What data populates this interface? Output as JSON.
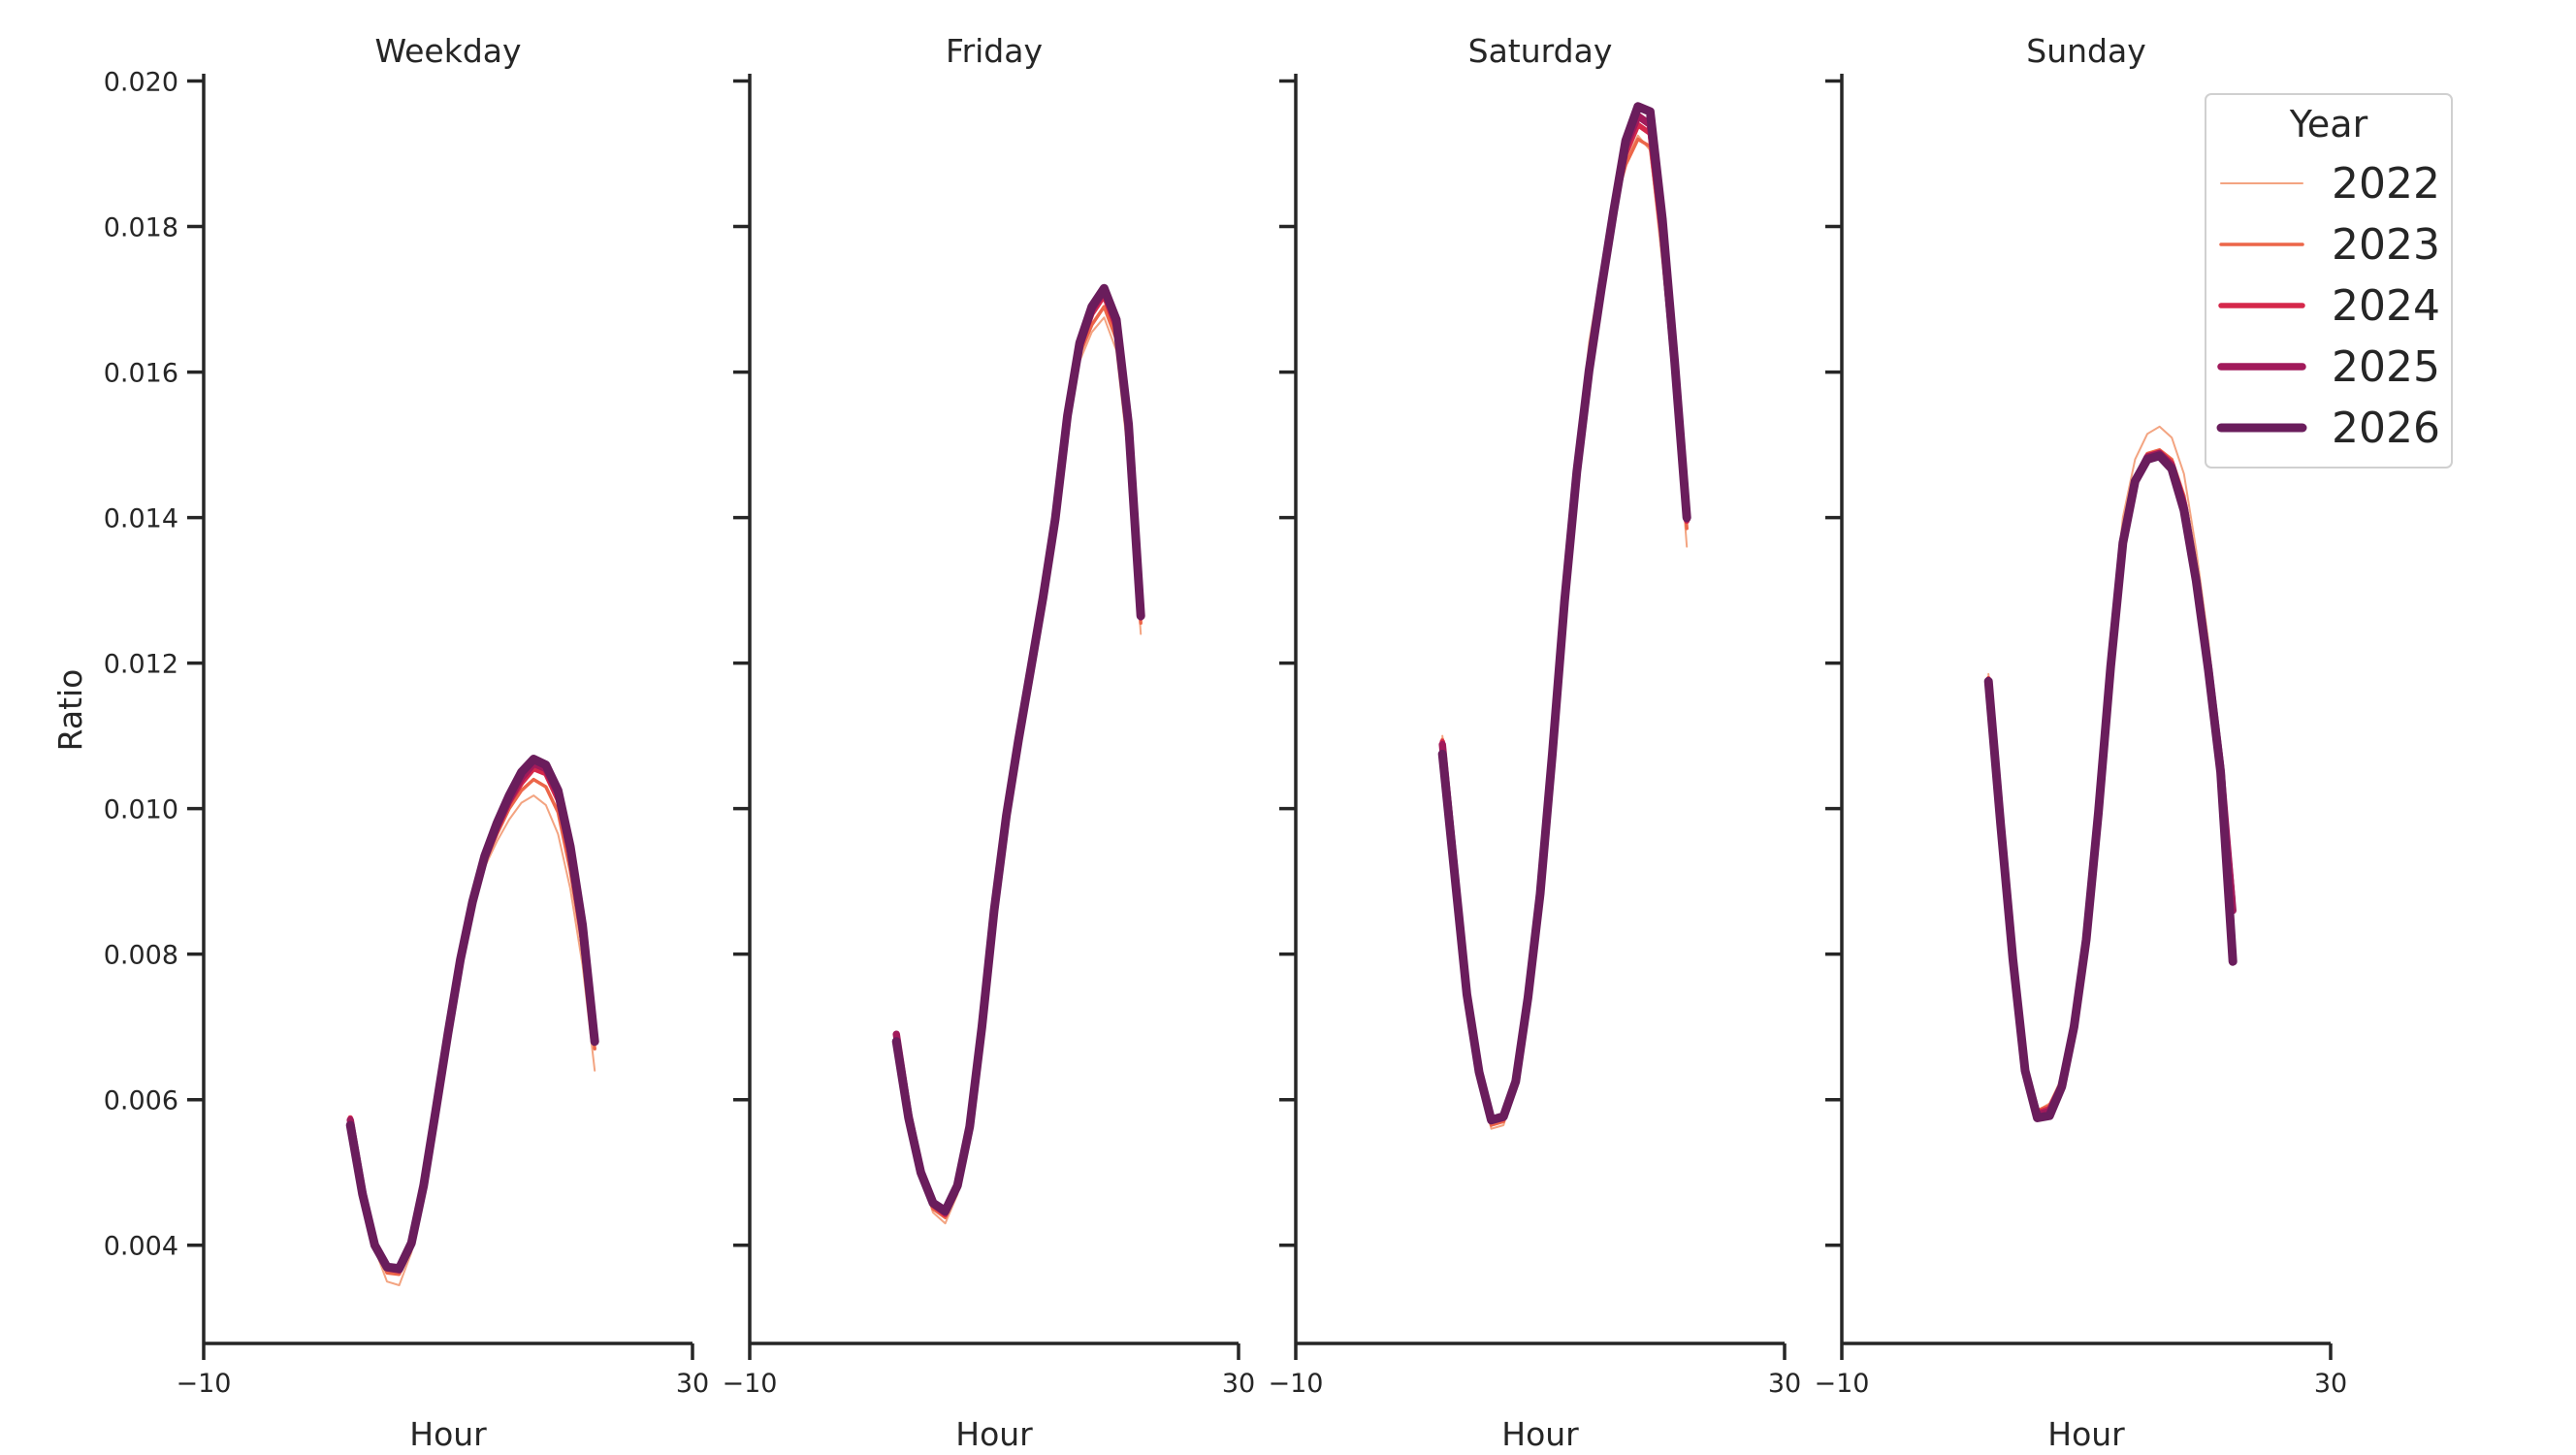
{
  "chart_data": {
    "type": "line",
    "ylabel": "Ratio",
    "xlabel": "Hour",
    "xlim": [
      -10,
      30
    ],
    "ylim": [
      0.00265,
      0.0205
    ],
    "xticks": [
      -10,
      30
    ],
    "xtick_labels": [
      "−10",
      "30"
    ],
    "yticks": [
      0.004,
      0.006,
      0.008,
      0.01,
      0.012,
      0.014,
      0.016,
      0.018,
      0.02
    ],
    "ytick_labels": [
      "0.004",
      "0.006",
      "0.008",
      "0.010",
      "0.012",
      "0.014",
      "0.016",
      "0.018",
      "0.020"
    ],
    "grid": false,
    "legend": {
      "title": "Year",
      "placement": "top-right",
      "entries": [
        {
          "label": "2022",
          "color": "#f3a481"
        },
        {
          "label": "2023",
          "color": "#ec6649"
        },
        {
          "label": "2024",
          "color": "#d5284b"
        },
        {
          "label": "2025",
          "color": "#a11a5b"
        },
        {
          "label": "2026",
          "color": "#6a1d5c"
        }
      ]
    },
    "panels": [
      {
        "title": "Weekday",
        "x": [
          0,
          1,
          2,
          3,
          4,
          5,
          6,
          7,
          8,
          9,
          10,
          11,
          12,
          13,
          14,
          15,
          16,
          17,
          18,
          19,
          20
        ],
        "series": [
          {
            "name": "2022",
            "values": [
              0.0057,
              0.0047,
              0.00395,
              0.0035,
              0.00345,
              0.0039,
              0.0047,
              0.00575,
              0.0068,
              0.0078,
              0.0086,
              0.0092,
              0.00955,
              0.00985,
              0.01008,
              0.01018,
              0.01005,
              0.00965,
              0.0089,
              0.00785,
              0.0064
            ]
          },
          {
            "name": "2023",
            "values": [
              0.00575,
              0.00475,
              0.004,
              0.00362,
              0.0036,
              0.004,
              0.00478,
              0.00582,
              0.00688,
              0.00788,
              0.00868,
              0.00925,
              0.00965,
              0.01,
              0.01025,
              0.0104,
              0.0103,
              0.00995,
              0.00915,
              0.0081,
              0.0067
            ]
          },
          {
            "name": "2024",
            "values": [
              0.00575,
              0.00475,
              0.00402,
              0.00368,
              0.00365,
              0.00402,
              0.0048,
              0.00584,
              0.0069,
              0.0079,
              0.0087,
              0.0093,
              0.00972,
              0.01008,
              0.01035,
              0.01055,
              0.01048,
              0.01012,
              0.00935,
              0.00825,
              0.00678
            ]
          },
          {
            "name": "2025",
            "values": [
              0.00572,
              0.00474,
              0.00401,
              0.00369,
              0.00366,
              0.00402,
              0.00481,
              0.00585,
              0.00691,
              0.00791,
              0.00871,
              0.00932,
              0.00975,
              0.01012,
              0.01042,
              0.01062,
              0.01055,
              0.0102,
              0.00942,
              0.0083,
              0.0068
            ]
          },
          {
            "name": "2026",
            "values": [
              0.00565,
              0.0047,
              0.004,
              0.0037,
              0.00368,
              0.00403,
              0.00482,
              0.00586,
              0.00692,
              0.00792,
              0.00872,
              0.00935,
              0.0098,
              0.01018,
              0.0105,
              0.01068,
              0.0106,
              0.01025,
              0.00948,
              0.0084,
              0.0068
            ]
          }
        ]
      },
      {
        "title": "Friday",
        "x": [
          0,
          1,
          2,
          3,
          4,
          5,
          6,
          7,
          8,
          9,
          10,
          11,
          12,
          13,
          14,
          15,
          16,
          17,
          18,
          19,
          20
        ],
        "series": [
          {
            "name": "2022",
            "values": [
              0.0069,
              0.0058,
              0.00495,
              0.00445,
              0.0043,
              0.0047,
              0.0056,
              0.007,
              0.0086,
              0.00995,
              0.0111,
              0.01215,
              0.0131,
              0.0142,
              0.01545,
              0.01615,
              0.01655,
              0.01675,
              0.0163,
              0.0148,
              0.0124
            ]
          },
          {
            "name": "2023",
            "values": [
              0.0069,
              0.0058,
              0.00498,
              0.0045,
              0.00438,
              0.00475,
              0.00562,
              0.007,
              0.0086,
              0.00995,
              0.01105,
              0.01205,
              0.013,
              0.01405,
              0.0154,
              0.01625,
              0.01665,
              0.0169,
              0.01645,
              0.015,
              0.01255
            ]
          },
          {
            "name": "2024",
            "values": [
              0.0069,
              0.0058,
              0.005,
              0.00455,
              0.00442,
              0.00478,
              0.00563,
              0.007,
              0.0086,
              0.00993,
              0.011,
              0.01198,
              0.01293,
              0.014,
              0.0154,
              0.01632,
              0.0168,
              0.01705,
              0.0166,
              0.01515,
              0.01262
            ]
          },
          {
            "name": "2025",
            "values": [
              0.0069,
              0.0058,
              0.00502,
              0.00457,
              0.00445,
              0.0048,
              0.00563,
              0.007,
              0.0086,
              0.00992,
              0.01098,
              0.01195,
              0.0129,
              0.01398,
              0.0154,
              0.01636,
              0.01686,
              0.01712,
              0.01668,
              0.01522,
              0.01265
            ]
          },
          {
            "name": "2026",
            "values": [
              0.0068,
              0.00575,
              0.005,
              0.00458,
              0.00447,
              0.00482,
              0.00563,
              0.007,
              0.0086,
              0.0099,
              0.01095,
              0.01192,
              0.0129,
              0.01398,
              0.0154,
              0.0164,
              0.0169,
              0.01715,
              0.01672,
              0.01528,
              0.01265
            ]
          }
        ]
      },
      {
        "title": "Saturday",
        "x": [
          0,
          1,
          2,
          3,
          4,
          5,
          6,
          7,
          8,
          9,
          10,
          11,
          12,
          13,
          14,
          15,
          16,
          17,
          18,
          19,
          20
        ],
        "series": [
          {
            "name": "2022",
            "values": [
              0.011,
              0.0092,
              0.0074,
              0.0063,
              0.0056,
              0.00565,
              0.0062,
              0.0074,
              0.0089,
              0.0109,
              0.013,
              0.0148,
              0.0164,
              0.0174,
              0.0183,
              0.0189,
              0.01925,
              0.01905,
              0.0175,
              0.0158,
              0.0136
            ]
          },
          {
            "name": "2023",
            "values": [
              0.01095,
              0.00918,
              0.00742,
              0.00633,
              0.00565,
              0.0057,
              0.00622,
              0.0074,
              0.00888,
              0.01085,
              0.01295,
              0.01475,
              0.01625,
              0.0173,
              0.01825,
              0.01885,
              0.0192,
              0.0191,
              0.0177,
              0.01595,
              0.01385
            ]
          },
          {
            "name": "2024",
            "values": [
              0.01092,
              0.00917,
              0.00744,
              0.00636,
              0.0057,
              0.00574,
              0.00624,
              0.0074,
              0.00886,
              0.0108,
              0.0129,
              0.0147,
              0.0161,
              0.0172,
              0.01822,
              0.019,
              0.0194,
              0.01928,
              0.01785,
              0.01605,
              0.01395
            ]
          },
          {
            "name": "2025",
            "values": [
              0.01088,
              0.00916,
              0.00745,
              0.00637,
              0.00572,
              0.00576,
              0.00625,
              0.0074,
              0.00884,
              0.01078,
              0.01288,
              0.01466,
              0.01605,
              0.01716,
              0.0182,
              0.0191,
              0.01952,
              0.0194,
              0.01795,
              0.0161,
              0.01398
            ]
          },
          {
            "name": "2026",
            "values": [
              0.01075,
              0.0091,
              0.00745,
              0.00638,
              0.00572,
              0.00577,
              0.00625,
              0.0074,
              0.00883,
              0.01076,
              0.01286,
              0.01463,
              0.01602,
              0.01714,
              0.0182,
              0.01918,
              0.01965,
              0.01958,
              0.0181,
              0.01615,
              0.014
            ]
          }
        ]
      },
      {
        "title": "Sunday",
        "x": [
          0,
          1,
          2,
          3,
          4,
          5,
          6,
          7,
          8,
          9,
          10,
          11,
          12,
          13,
          14,
          15,
          16,
          17,
          18,
          19,
          20
        ],
        "series": [
          {
            "name": "2022",
            "values": [
              0.01185,
              0.0099,
              0.008,
              0.00645,
              0.00585,
              0.00595,
              0.0063,
              0.00715,
              0.0084,
              0.0103,
              0.0124,
              0.014,
              0.0148,
              0.01515,
              0.01525,
              0.0151,
              0.0146,
              0.01355,
              0.0123,
              0.0108,
              0.009
            ]
          },
          {
            "name": "2023",
            "values": [
              0.0118,
              0.00985,
              0.00798,
              0.00645,
              0.00585,
              0.00592,
              0.00625,
              0.0071,
              0.0083,
              0.0101,
              0.0121,
              0.0138,
              0.01455,
              0.01488,
              0.01493,
              0.0148,
              0.0143,
              0.0133,
              0.0121,
              0.0107,
              0.0089
            ]
          },
          {
            "name": "2024",
            "values": [
              0.01178,
              0.00982,
              0.00796,
              0.00642,
              0.00582,
              0.00588,
              0.00622,
              0.00705,
              0.00825,
              0.01,
              0.012,
              0.0137,
              0.0145,
              0.01485,
              0.0149,
              0.01475,
              0.01422,
              0.01322,
              0.012,
              0.0106,
              0.00875
            ]
          },
          {
            "name": "2025",
            "values": [
              0.01176,
              0.0098,
              0.00795,
              0.00641,
              0.00579,
              0.00584,
              0.0062,
              0.00702,
              0.00822,
              0.00997,
              0.01197,
              0.01368,
              0.0145,
              0.01483,
              0.01488,
              0.01471,
              0.01416,
              0.01318,
              0.01196,
              0.01058,
              0.0086
            ]
          },
          {
            "name": "2026",
            "values": [
              0.01175,
              0.00978,
              0.00793,
              0.0064,
              0.00575,
              0.00578,
              0.00618,
              0.007,
              0.0082,
              0.00995,
              0.01195,
              0.01365,
              0.0145,
              0.0148,
              0.01485,
              0.01467,
              0.0141,
              0.01313,
              0.0119,
              0.0105,
              0.0079
            ]
          }
        ]
      }
    ]
  }
}
